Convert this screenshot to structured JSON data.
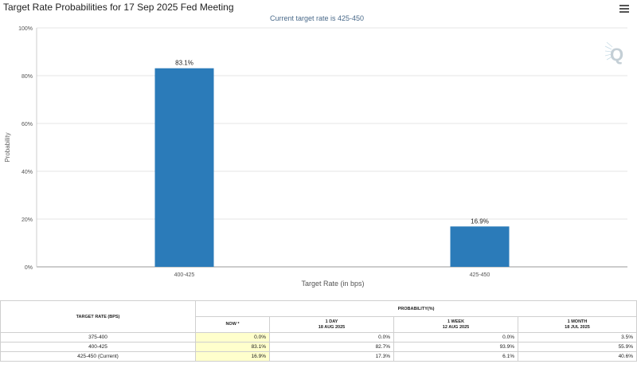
{
  "header": {
    "title": "Target Rate Probabilities for 17 Sep 2025 Fed Meeting"
  },
  "chart_data": {
    "type": "bar",
    "subtitle": "Current target rate is 425-450",
    "categories": [
      "400-425",
      "425-450"
    ],
    "values": [
      83.1,
      16.9
    ],
    "data_labels": [
      "83.1%",
      "16.9%"
    ],
    "xlabel": "Target Rate (in bps)",
    "ylabel": "Probability",
    "ylim": [
      0,
      100
    ],
    "yticks": [
      "0%",
      "20%",
      "40%",
      "60%",
      "80%",
      "100%"
    ],
    "bar_color": "#2b7bb9",
    "grid": true,
    "legend": "none"
  },
  "table": {
    "rate_header": "TARGET RATE (BPS)",
    "prob_header": "PROBABILITY(%)",
    "columns": [
      {
        "line1": "NOW *",
        "line2": ""
      },
      {
        "line1": "1 DAY",
        "line2": "18 AUG 2025"
      },
      {
        "line1": "1 WEEK",
        "line2": "12 AUG 2025"
      },
      {
        "line1": "1 MONTH",
        "line2": "18 JUL 2025"
      }
    ],
    "rows": [
      {
        "rate": "375-400",
        "values": [
          "0.0%",
          "0.0%",
          "0.0%",
          "3.5%"
        ]
      },
      {
        "rate": "400-425",
        "values": [
          "83.1%",
          "82.7%",
          "93.9%",
          "55.9%"
        ]
      },
      {
        "rate": "425-450 (Current)",
        "values": [
          "16.9%",
          "17.3%",
          "6.1%",
          "40.6%"
        ]
      }
    ]
  }
}
